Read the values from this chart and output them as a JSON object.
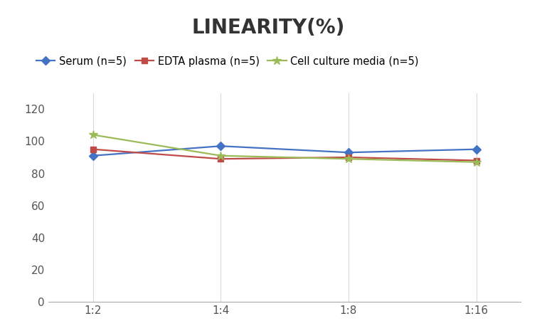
{
  "title": "LINEARITY(%)",
  "title_fontsize": 20,
  "title_fontweight": "bold",
  "x_labels": [
    "1:2",
    "1:4",
    "1:8",
    "1:16"
  ],
  "x_values": [
    0,
    1,
    2,
    3
  ],
  "series": [
    {
      "label": "Serum (n=5)",
      "values": [
        91,
        97,
        93,
        95
      ],
      "color": "#4472C4",
      "marker": "D",
      "markersize": 6,
      "linewidth": 1.6
    },
    {
      "label": "EDTA plasma (n=5)",
      "values": [
        95,
        89,
        90,
        88
      ],
      "color": "#BE4B48",
      "marker": "s",
      "markersize": 6,
      "linewidth": 1.6
    },
    {
      "label": "Cell culture media (n=5)",
      "values": [
        104,
        91,
        89,
        87
      ],
      "color": "#9BBB59",
      "marker": "*",
      "markersize": 9,
      "linewidth": 1.6
    }
  ],
  "ylim": [
    0,
    130
  ],
  "yticks": [
    0,
    20,
    40,
    60,
    80,
    100,
    120
  ],
  "grid_color": "#D9D9D9",
  "background_color": "#FFFFFF",
  "legend_fontsize": 10.5,
  "axis_fontsize": 11
}
